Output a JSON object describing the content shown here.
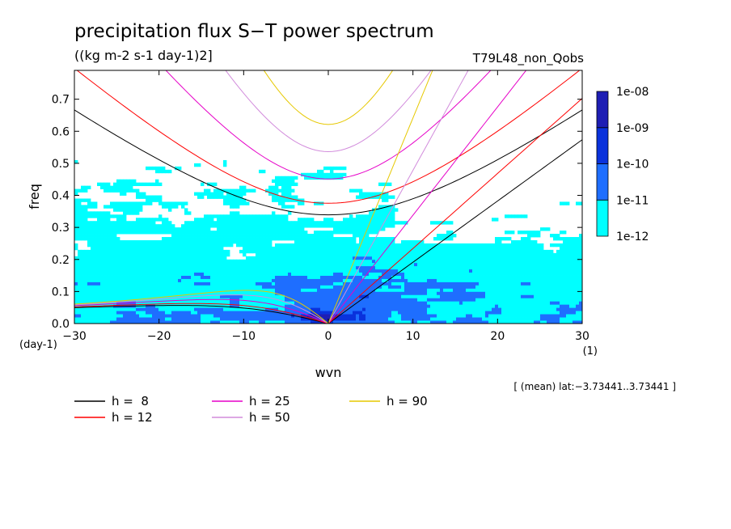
{
  "chart_data": {
    "type": "contour",
    "title": "precipitation flux S−T power spectrum",
    "subtitle": "((kg m-2 s-1 day-1)2]",
    "run_label": "T79L48_non_Qobs",
    "xlabel": "wvn",
    "ylabel": "freq",
    "x_unit": "(1)",
    "y_unit": "(day-1)",
    "xlim": [
      -30,
      30
    ],
    "ylim": [
      0,
      0.79
    ],
    "xticks": [
      -30,
      -20,
      -10,
      0,
      10,
      20,
      30
    ],
    "xtick_labels": [
      "−30",
      "−20",
      "−10",
      "0",
      "10",
      "20",
      "30"
    ],
    "yticks": [
      0,
      0.1,
      0.2,
      0.3,
      0.4,
      0.5,
      0.6,
      0.7
    ],
    "ytick_labels": [
      "0.0",
      "0.1",
      "0.2",
      "0.3",
      "0.4",
      "0.5",
      "0.6",
      "0.7"
    ],
    "mean_note": "[ (mean) lat:−3.73441..3.73441 ]",
    "colorbar": {
      "levels": [
        "1e-12",
        "1e-11",
        "1e-10",
        "1e-09",
        "1e-08"
      ],
      "colors": [
        "#00ffff",
        "#1e6eff",
        "#0a32dc",
        "#1e1eb4",
        "#4b0aaa"
      ]
    },
    "dispersion_curves": [
      {
        "label": "h =  8",
        "h": 8,
        "color": "#000000"
      },
      {
        "label": "h = 12",
        "h": 12,
        "color": "#ff0000"
      },
      {
        "label": "h = 25",
        "h": 25,
        "color": "#e600c8"
      },
      {
        "label": "h = 50",
        "h": 50,
        "color": "#d28cdc"
      },
      {
        "label": "h = 90",
        "h": 90,
        "color": "#e6c800"
      }
    ],
    "curve_types": [
      "kelvin",
      "eig_n1",
      "rossby_n1"
    ]
  }
}
